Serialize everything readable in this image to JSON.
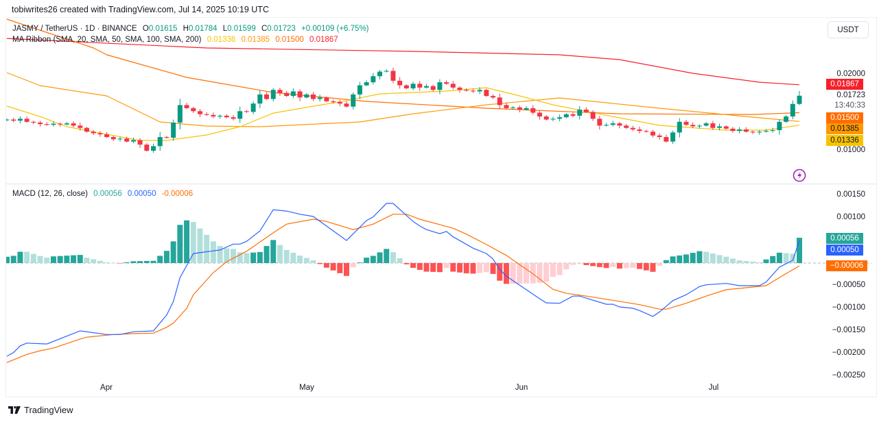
{
  "header": {
    "credit": "tobiwrites26 created with TradingView.com, Jul 14, 2025 10:19 UTC"
  },
  "symbol": {
    "title": "JASMY / TetherUS · 1D · BINANCE",
    "o_label": "O",
    "o": "0.01615",
    "h_label": "H",
    "h": "0.01784",
    "l_label": "L",
    "l": "0.01599",
    "c_label": "C",
    "c": "0.01723",
    "change": "+0.00109 (+6.75%)"
  },
  "ma_ribbon": {
    "label": "MA Ribbon (SMA, 20, SMA, 50, SMA, 100, SMA, 200)",
    "v20": "0.01336",
    "v50": "0.01385",
    "v100": "0.01500",
    "v200": "0.01867"
  },
  "macd_legend": {
    "label": "MACD (12, 26, close)",
    "hist": "0.00056",
    "macd": "0.00050",
    "signal": "-0.00006"
  },
  "price_axis": {
    "currency": "USDT",
    "ticks": [
      "0.02000",
      "0.01000"
    ],
    "last_price": "0.01723",
    "countdown": "13:40:33",
    "badges": {
      "ma200": "0.01867",
      "ma100": "0.01500",
      "ma50": "0.01385",
      "ma20": "0.01336"
    }
  },
  "macd_axis": {
    "ticks": [
      "0.00150",
      "0.00100",
      "−0.00050",
      "−0.00100",
      "−0.00150",
      "−0.00200",
      "−0.00250"
    ],
    "badges": {
      "hist": "0.00056",
      "macd": "0.00050",
      "signal": "−0.00006"
    }
  },
  "time_axis": [
    "Apr",
    "May",
    "Jun",
    "Jul"
  ],
  "footer": {
    "brand": "TradingView"
  },
  "colors": {
    "up": "#089981",
    "down": "#f23645",
    "ma20": "#f7c300",
    "ma50": "#ff9800",
    "ma100": "#ff6d00",
    "ma200": "#f7202a",
    "macd": "#2962ff",
    "signal": "#ff6d00",
    "hist_up_strong": "#26a69a",
    "hist_up_weak": "#b2dfdb",
    "hist_down_strong": "#ff5252",
    "hist_down_weak": "#ffcdd2"
  },
  "chart_data": [
    {
      "type": "candlestick",
      "title": "JASMY / TetherUS · 1D · BINANCE",
      "x_range": [
        "Mar 17, 2025",
        "Jul 14, 2025"
      ],
      "x_ticks": [
        "Apr",
        "May",
        "Jun",
        "Jul"
      ],
      "ylim": [
        0.008,
        0.028
      ],
      "first_open": 0.014,
      "last_candle": {
        "open": 0.01615,
        "high": 0.01784,
        "low": 0.01599,
        "close": 0.01723
      },
      "closes": [
        0.0141,
        0.01395,
        0.0142,
        0.0138,
        0.0137,
        0.0135,
        0.0134,
        0.01355,
        0.01345,
        0.0136,
        0.0133,
        0.013,
        0.0125,
        0.0123,
        0.01215,
        0.0118,
        0.0115,
        0.0116,
        0.0112,
        0.0114,
        0.0108,
        0.01,
        0.0106,
        0.0118,
        0.0117,
        0.0137,
        0.016,
        0.0156,
        0.0152,
        0.0148,
        0.0147,
        0.0145,
        0.0146,
        0.0144,
        0.0142,
        0.0152,
        0.0151,
        0.0162,
        0.0174,
        0.0168,
        0.018,
        0.0176,
        0.0172,
        0.0178,
        0.017,
        0.0174,
        0.0168,
        0.017,
        0.0165,
        0.0164,
        0.0162,
        0.0158,
        0.0174,
        0.0186,
        0.019,
        0.0198,
        0.0204,
        0.0205,
        0.0192,
        0.0186,
        0.0182,
        0.0188,
        0.0183,
        0.0185,
        0.018,
        0.019,
        0.0188,
        0.0183,
        0.018,
        0.0179,
        0.0178,
        0.018,
        0.0172,
        0.017,
        0.016,
        0.0156,
        0.0157,
        0.0154,
        0.0156,
        0.015,
        0.0145,
        0.0141,
        0.0142,
        0.0144,
        0.0148,
        0.0146,
        0.0154,
        0.0151,
        0.0142,
        0.0133,
        0.0134,
        0.0136,
        0.0133,
        0.013,
        0.0128,
        0.0126,
        0.0125,
        0.012,
        0.0118,
        0.0112,
        0.0124,
        0.0138,
        0.0134,
        0.0132,
        0.0133,
        0.0136,
        0.013,
        0.0132,
        0.0129,
        0.0126,
        0.0128,
        0.0125,
        0.0124,
        0.0125,
        0.0126,
        0.0127,
        0.0138,
        0.0145,
        0.01615,
        0.01723
      ],
      "moving_averages": {
        "sma20": [
          [
            0,
            0.01586
          ],
          [
            5,
            0.0145
          ],
          [
            9,
            0.01315
          ],
          [
            20,
            0.01135
          ],
          [
            24,
            0.01135
          ],
          [
            30,
            0.01207
          ],
          [
            35,
            0.01315
          ],
          [
            40,
            0.01495
          ],
          [
            46,
            0.01586
          ],
          [
            51,
            0.01658
          ],
          [
            56,
            0.01748
          ],
          [
            66,
            0.01784
          ],
          [
            72,
            0.01829
          ],
          [
            77,
            0.01721
          ],
          [
            82,
            0.01604
          ],
          [
            92,
            0.01432
          ],
          [
            98,
            0.01333
          ],
          [
            108,
            0.0127
          ],
          [
            114,
            0.0127
          ],
          [
            119,
            0.01336
          ]
        ],
        "sma50": [
          [
            0,
            0.02027
          ],
          [
            5,
            0.01856
          ],
          [
            15,
            0.01721
          ],
          [
            23,
            0.01378
          ],
          [
            30,
            0.01324
          ],
          [
            38,
            0.01315
          ],
          [
            53,
            0.01378
          ],
          [
            61,
            0.01486
          ],
          [
            72,
            0.01604
          ],
          [
            83,
            0.01694
          ],
          [
            98,
            0.01559
          ],
          [
            111,
            0.0145
          ],
          [
            119,
            0.01385
          ]
        ],
        "sma100": [
          [
            0,
            0.0273
          ],
          [
            13,
            0.02351
          ],
          [
            15,
            0.02261
          ],
          [
            27,
            0.01964
          ],
          [
            40,
            0.01766
          ],
          [
            54,
            0.01649
          ],
          [
            72,
            0.01559
          ],
          [
            92,
            0.01486
          ],
          [
            112,
            0.01477
          ],
          [
            119,
            0.015
          ]
        ],
        "sma200": [
          [
            0,
            0.02477
          ],
          [
            30,
            0.02351
          ],
          [
            61,
            0.02306
          ],
          [
            83,
            0.02261
          ],
          [
            92,
            0.02198
          ],
          [
            103,
            0.02018
          ],
          [
            113,
            0.01901
          ],
          [
            119,
            0.01867
          ]
        ]
      }
    },
    {
      "type": "line+bar",
      "title": "MACD (12, 26, close)",
      "ylim": [
        -0.0026,
        0.0017
      ],
      "y_ticks": [
        0.0015,
        0.001,
        -0.0005,
        -0.001,
        -0.0015,
        -0.002,
        -0.0025
      ],
      "macd": [
        [
          0,
          -0.00206
        ],
        [
          1,
          -0.00198
        ],
        [
          2,
          -0.00183
        ],
        [
          3,
          -0.00177
        ],
        [
          6,
          -0.00179
        ],
        [
          11,
          -0.0015
        ],
        [
          15,
          -0.00158
        ],
        [
          17,
          -0.00158
        ],
        [
          19,
          -0.00152
        ],
        [
          22,
          -0.0015
        ],
        [
          24,
          -0.00115
        ],
        [
          25,
          -0.00085
        ],
        [
          26,
          -0.00032
        ],
        [
          28,
          0.00021
        ],
        [
          31,
          0.00027
        ],
        [
          32,
          0.00029
        ],
        [
          34,
          0.00042
        ],
        [
          35,
          0.00042
        ],
        [
          36,
          0.00048
        ],
        [
          38,
          0.00071
        ],
        [
          40,
          0.00118
        ],
        [
          42,
          0.00115
        ],
        [
          44,
          0.00108
        ],
        [
          46,
          0.00103
        ],
        [
          51,
          0.0005
        ],
        [
          54,
          0.00094
        ],
        [
          55,
          0.00102
        ],
        [
          57,
          0.00132
        ],
        [
          58,
          0.00132
        ],
        [
          61,
          0.00092
        ],
        [
          62,
          0.00082
        ],
        [
          63,
          0.00074
        ],
        [
          65,
          0.00065
        ],
        [
          66,
          0.0007
        ],
        [
          67,
          0.00058
        ],
        [
          70,
          0.00033
        ],
        [
          72,
          0.00021
        ],
        [
          73,
          9e-05
        ],
        [
          74,
          -0.00014
        ],
        [
          75,
          -0.00029
        ],
        [
          78,
          -0.00059
        ],
        [
          80,
          -0.00079
        ],
        [
          81,
          -0.00088
        ],
        [
          83,
          -0.00089
        ],
        [
          85,
          -0.00073
        ],
        [
          86,
          -0.00073
        ],
        [
          90,
          -0.00091
        ],
        [
          91,
          -0.00091
        ],
        [
          92,
          -0.00097
        ],
        [
          94,
          -0.001
        ],
        [
          95,
          -0.00105
        ],
        [
          97,
          -0.00118
        ],
        [
          98,
          -0.00108
        ],
        [
          100,
          -0.00083
        ],
        [
          102,
          -0.0007
        ],
        [
          104,
          -0.00052
        ],
        [
          105,
          -0.00048
        ],
        [
          108,
          -0.00045
        ],
        [
          110,
          -0.0005
        ],
        [
          113,
          -0.0005
        ],
        [
          114,
          -0.00042
        ],
        [
          116,
          -9e-05
        ],
        [
          118,
          6e-05
        ],
        [
          119,
          0.0005
        ]
      ],
      "signal": [
        [
          0,
          -0.0022
        ],
        [
          3,
          -0.00202
        ],
        [
          5,
          -0.00194
        ],
        [
          7,
          -0.00188
        ],
        [
          11,
          -0.00168
        ],
        [
          12,
          -0.00164
        ],
        [
          16,
          -0.00158
        ],
        [
          19,
          -0.00156
        ],
        [
          22,
          -0.00155
        ],
        [
          24,
          -0.00142
        ],
        [
          25,
          -0.00133
        ],
        [
          27,
          -0.001
        ],
        [
          28,
          -0.0007
        ],
        [
          31,
          -0.00021
        ],
        [
          33,
          3e-05
        ],
        [
          36,
          0.00026
        ],
        [
          40,
          0.00067
        ],
        [
          42,
          0.00086
        ],
        [
          46,
          0.00097
        ],
        [
          48,
          0.00092
        ],
        [
          52,
          0.00074
        ],
        [
          55,
          0.00086
        ],
        [
          58,
          0.00108
        ],
        [
          60,
          0.00108
        ],
        [
          62,
          0.00097
        ],
        [
          65,
          0.00085
        ],
        [
          67,
          0.00077
        ],
        [
          69,
          0.00064
        ],
        [
          72,
          0.00041
        ],
        [
          75,
          0.00017
        ],
        [
          79,
          -0.00024
        ],
        [
          82,
          -0.00058
        ],
        [
          84,
          -0.00067
        ],
        [
          87,
          -0.00073
        ],
        [
          90,
          -0.0008
        ],
        [
          95,
          -0.00092
        ],
        [
          98,
          -0.00102
        ],
        [
          99,
          -0.00102
        ],
        [
          102,
          -0.00089
        ],
        [
          105,
          -0.00073
        ],
        [
          108,
          -0.00059
        ],
        [
          110,
          -0.00056
        ],
        [
          114,
          -0.0005
        ],
        [
          116,
          -0.00032
        ],
        [
          119,
          -6e-05
        ]
      ],
      "histogram": "macd minus signal per bar",
      "last_values": {
        "hist": 0.00056,
        "macd": 0.0005,
        "signal": -6e-05
      }
    }
  ]
}
